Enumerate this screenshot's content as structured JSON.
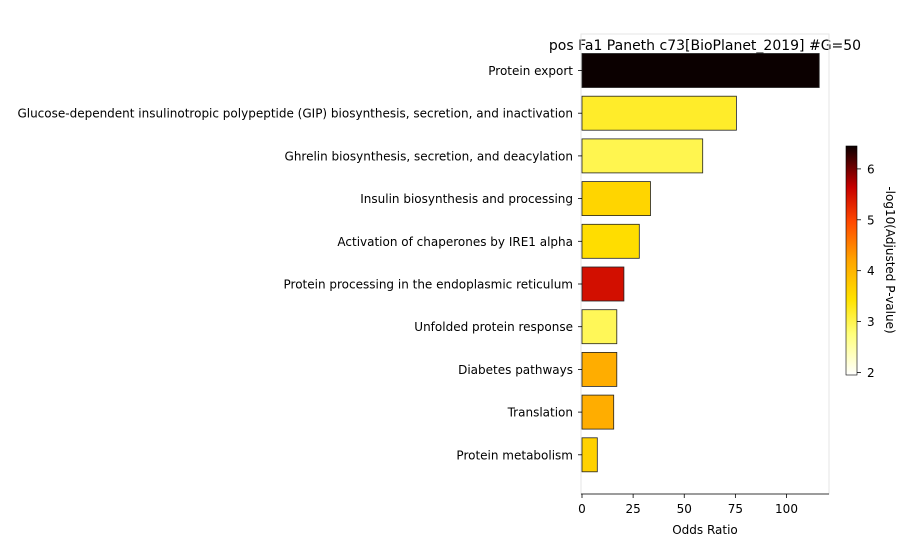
{
  "chart_data": {
    "type": "bar",
    "orientation": "horizontal",
    "title": "pos Fa1 Paneth c73[BioPlanet_2019] #G=50",
    "xlabel": "Odds Ratio",
    "ylabel": "",
    "xlim": [
      0,
      120
    ],
    "xticks": [
      "0",
      "25",
      "50",
      "75",
      "100"
    ],
    "grid": false,
    "categories": [
      "Protein export",
      "Glucose-dependent insulinotropic polypeptide (GIP) biosynthesis, secretion, and inactivation",
      "Ghrelin biosynthesis, secretion, and deacylation",
      "Insulin biosynthesis and processing",
      "Activation of chaperones by IRE1 alpha",
      "Protein processing in the endoplasmic reticulum",
      "Unfolded protein response",
      "Diabetes pathways",
      "Translation",
      "Protein metabolism"
    ],
    "values": [
      116,
      75.5,
      59,
      33.5,
      28,
      20.5,
      17,
      17,
      15.5,
      7.5
    ],
    "color_values": [
      6.45,
      3.2,
      3.0,
      3.6,
      3.5,
      5.5,
      2.95,
      4.1,
      4.1,
      3.65
    ],
    "colorbar": {
      "label": "-log10(Adjusted P-value)",
      "ticks": [
        "2",
        "3",
        "4",
        "5",
        "6"
      ],
      "range": [
        1.95,
        6.45
      ],
      "colormap": "hot_r"
    }
  }
}
